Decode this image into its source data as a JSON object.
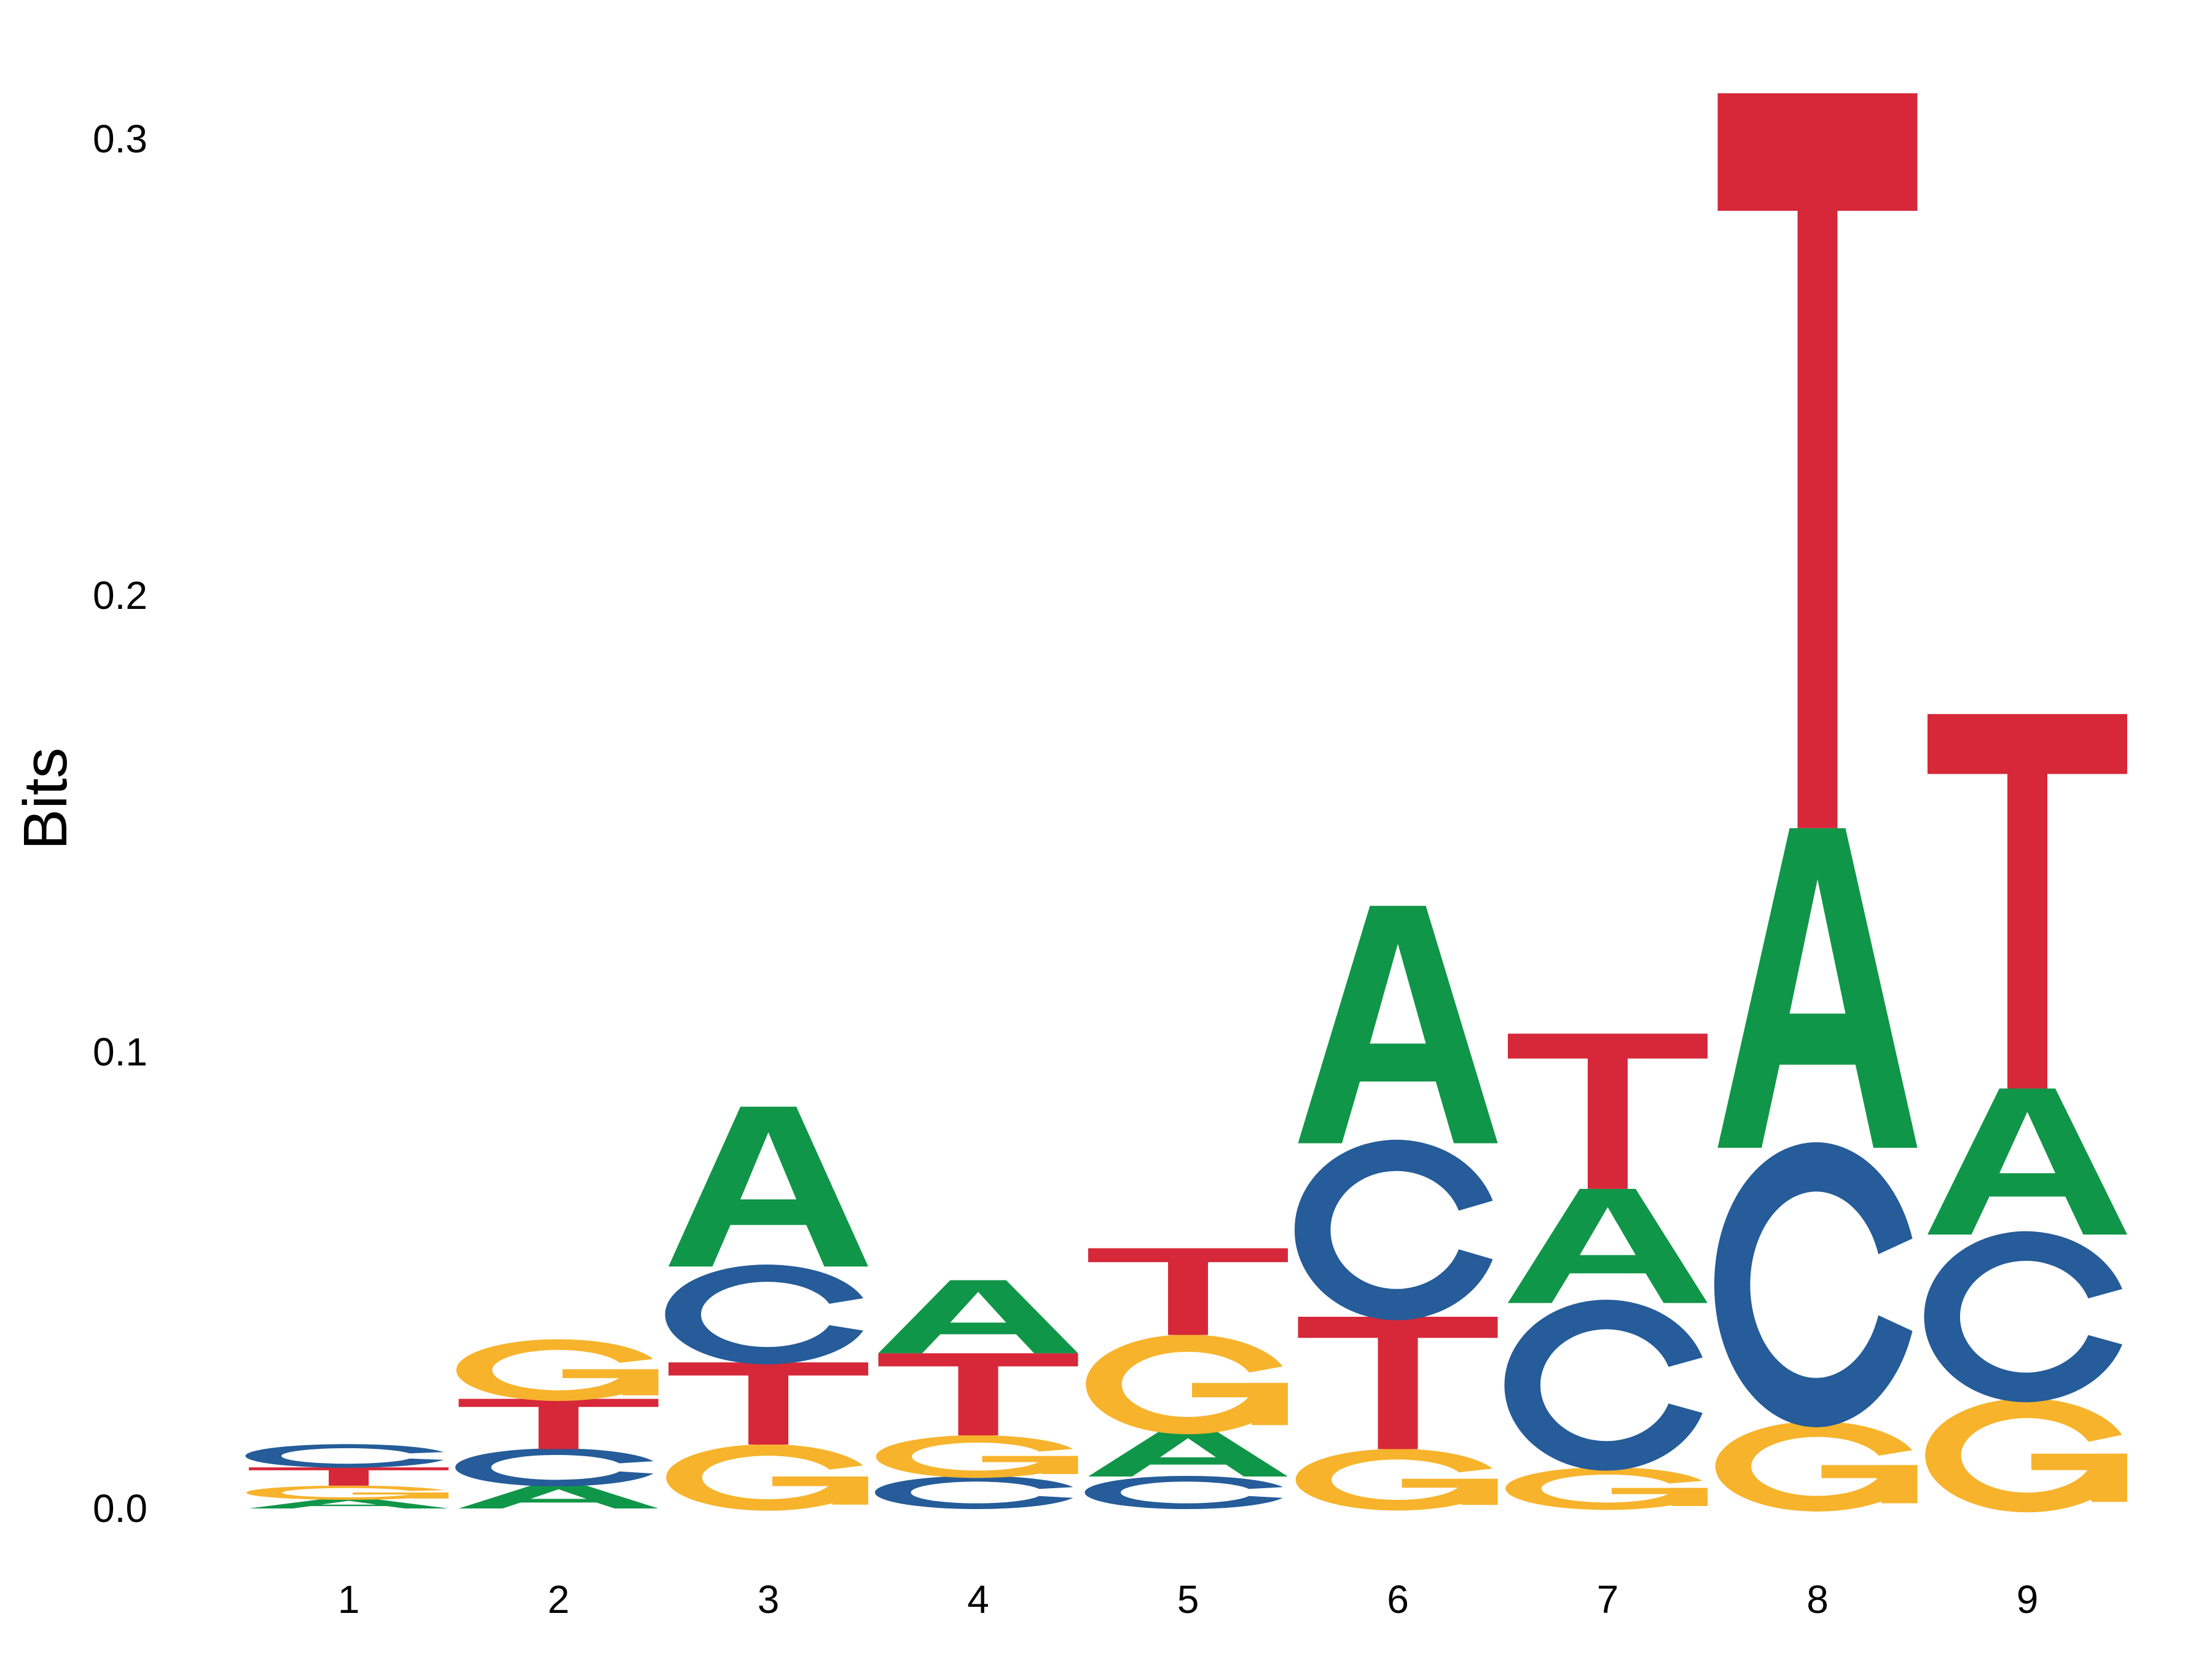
{
  "chart_data": {
    "type": "sequence_logo",
    "title": "",
    "xlabel": "",
    "ylabel": "Bits",
    "ylim": [
      0,
      0.31
    ],
    "yticks": [
      "0.0",
      "0.1",
      "0.2",
      "0.3"
    ],
    "grid": false,
    "legend": "none",
    "colors": {
      "A": "#109648",
      "C": "#255C99",
      "G": "#F7B32B",
      "T": "#D62839"
    },
    "positions": [
      {
        "label": "1",
        "stack": [
          {
            "base": "A",
            "bits": 0.002
          },
          {
            "base": "G",
            "bits": 0.003
          },
          {
            "base": "T",
            "bits": 0.004
          },
          {
            "base": "C",
            "bits": 0.005
          }
        ]
      },
      {
        "label": "2",
        "stack": [
          {
            "base": "A",
            "bits": 0.005
          },
          {
            "base": "C",
            "bits": 0.008
          },
          {
            "base": "T",
            "bits": 0.011
          },
          {
            "base": "G",
            "bits": 0.013
          }
        ]
      },
      {
        "label": "3",
        "stack": [
          {
            "base": "G",
            "bits": 0.014
          },
          {
            "base": "T",
            "bits": 0.018
          },
          {
            "base": "C",
            "bits": 0.021
          },
          {
            "base": "A",
            "bits": 0.035
          }
        ]
      },
      {
        "label": "4",
        "stack": [
          {
            "base": "C",
            "bits": 0.007
          },
          {
            "base": "G",
            "bits": 0.009
          },
          {
            "base": "T",
            "bits": 0.018
          },
          {
            "base": "A",
            "bits": 0.016
          }
        ]
      },
      {
        "label": "5",
        "stack": [
          {
            "base": "C",
            "bits": 0.007
          },
          {
            "base": "A",
            "bits": 0.01
          },
          {
            "base": "G",
            "bits": 0.021
          },
          {
            "base": "T",
            "bits": 0.019
          }
        ]
      },
      {
        "label": "6",
        "stack": [
          {
            "base": "G",
            "bits": 0.013
          },
          {
            "base": "T",
            "bits": 0.029
          },
          {
            "base": "C",
            "bits": 0.038
          },
          {
            "base": "A",
            "bits": 0.052
          }
        ]
      },
      {
        "label": "7",
        "stack": [
          {
            "base": "G",
            "bits": 0.009
          },
          {
            "base": "C",
            "bits": 0.036
          },
          {
            "base": "A",
            "bits": 0.025
          },
          {
            "base": "T",
            "bits": 0.034
          }
        ]
      },
      {
        "label": "8",
        "stack": [
          {
            "base": "G",
            "bits": 0.019
          },
          {
            "base": "C",
            "bits": 0.06
          },
          {
            "base": "A",
            "bits": 0.07
          },
          {
            "base": "T",
            "bits": 0.161
          }
        ]
      },
      {
        "label": "9",
        "stack": [
          {
            "base": "G",
            "bits": 0.024
          },
          {
            "base": "C",
            "bits": 0.036
          },
          {
            "base": "A",
            "bits": 0.032
          },
          {
            "base": "T",
            "bits": 0.082
          }
        ]
      }
    ]
  }
}
